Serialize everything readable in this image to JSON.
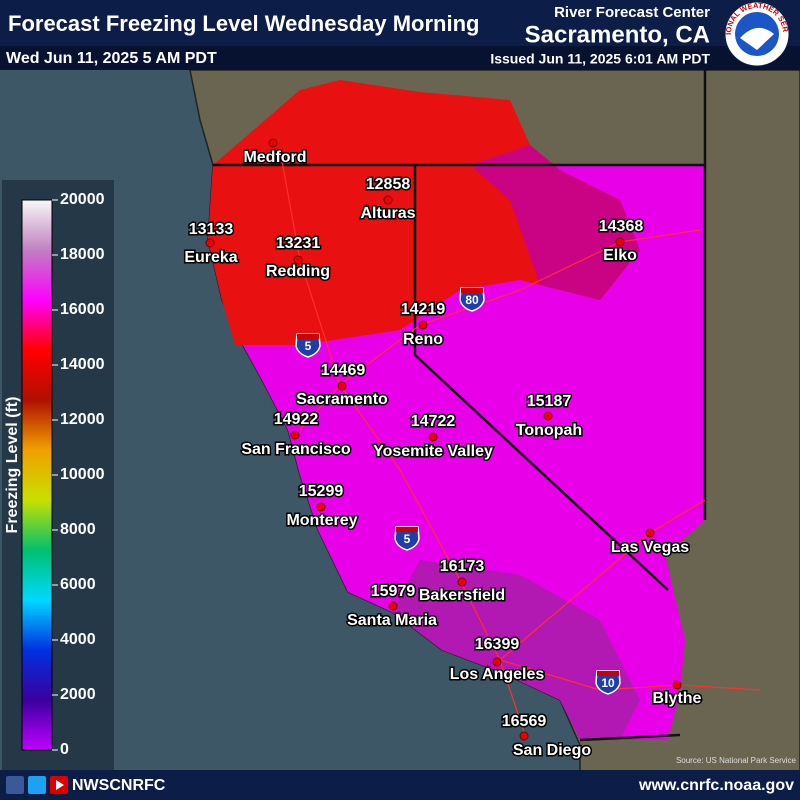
{
  "header": {
    "title": "Forecast Freezing Level Wednesday Morning",
    "valid_time": "Wed Jun 11, 2025 5 AM PDT",
    "office_line1": "River Forecast Center",
    "office_line2": "Sacramento, CA",
    "issued": "Issued Jun 11, 2025 6:01 AM PDT",
    "logo_text": "NATIONAL WEATHER SERVICE"
  },
  "legend": {
    "title": "Freezing Level (ft)",
    "range": [
      0,
      20000
    ],
    "ticks": [
      0,
      2000,
      4000,
      6000,
      8000,
      10000,
      12000,
      14000,
      16000,
      18000,
      20000
    ],
    "colors": [
      "#c000ff",
      "#3a00a0",
      "#0030e0",
      "#00d8ff",
      "#00c070",
      "#c8e000",
      "#f0a000",
      "#b01000",
      "#ff0000",
      "#ff00ff",
      "#c080c0",
      "#f8f8f8"
    ]
  },
  "map": {
    "cities": [
      {
        "name": "Medford",
        "value": null
      },
      {
        "name": "Eureka",
        "value": 13133
      },
      {
        "name": "Redding",
        "value": 13231
      },
      {
        "name": "Alturas",
        "value": 12858
      },
      {
        "name": "Elko",
        "value": 14368
      },
      {
        "name": "Reno",
        "value": 14219
      },
      {
        "name": "Sacramento",
        "value": 14469
      },
      {
        "name": "San Francisco",
        "value": 14922
      },
      {
        "name": "Yosemite Valley",
        "value": 14722
      },
      {
        "name": "Tonopah",
        "value": 15187
      },
      {
        "name": "Monterey",
        "value": 15299
      },
      {
        "name": "Las Vegas",
        "value": null
      },
      {
        "name": "Bakersfield",
        "value": 16173
      },
      {
        "name": "Santa Maria",
        "value": 15979
      },
      {
        "name": "Los Angeles",
        "value": 16399
      },
      {
        "name": "Blythe",
        "value": null
      },
      {
        "name": "San Diego",
        "value": 16569
      }
    ],
    "highways": [
      "5",
      "80",
      "5",
      "10"
    ],
    "source": "Source: US National Park Service"
  },
  "footer": {
    "handle": "NWSCNRFC",
    "url": "www.cnrfc.noaa.gov"
  }
}
